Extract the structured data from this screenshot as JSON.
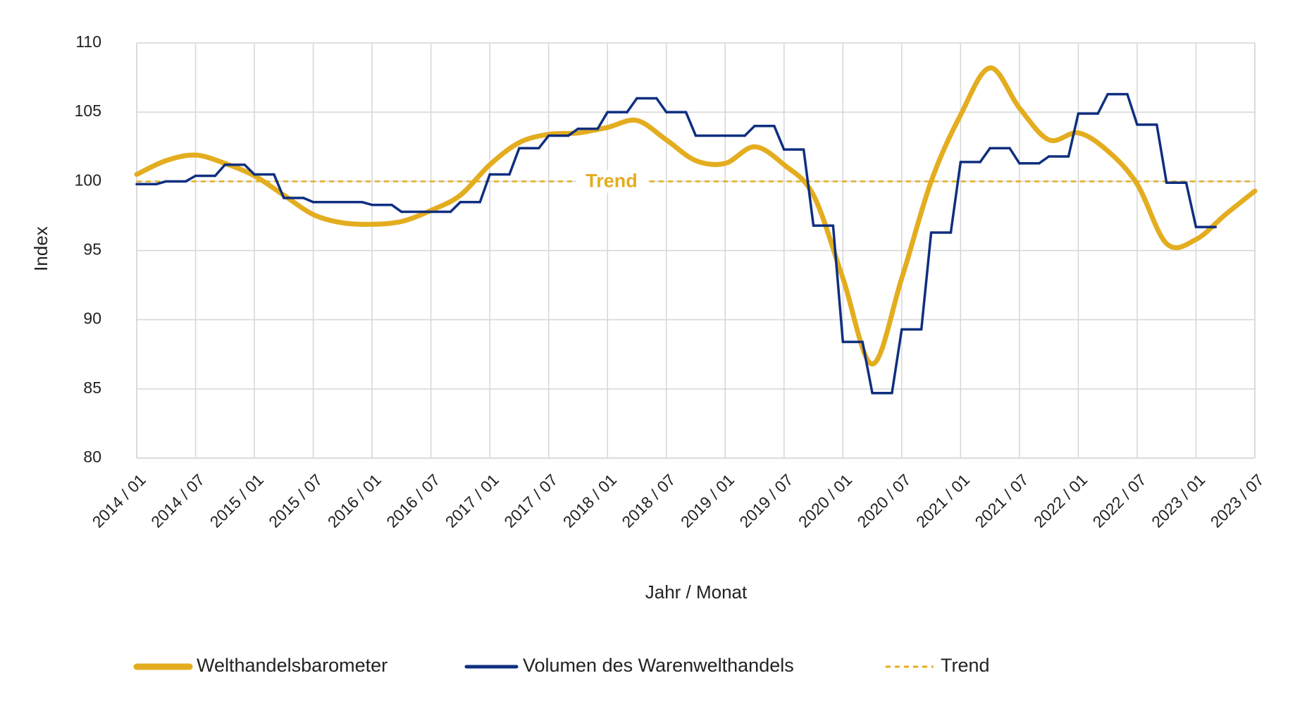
{
  "chart_data": {
    "type": "line",
    "y_label": "Index",
    "x_label": "Jahr / Monat",
    "categories": [
      "2014 / 01",
      null,
      "2014 / 07",
      null,
      "2015 / 01",
      null,
      "2015 / 07",
      null,
      "2016 / 01",
      null,
      "2016 / 07",
      null,
      "2017 / 01",
      null,
      "2017 / 07",
      null,
      "2018 / 01",
      null,
      "2018 / 07",
      null,
      "2019 / 01",
      null,
      "2019 / 07",
      null,
      "2020 / 01",
      null,
      "2020 / 07",
      null,
      "2021 / 01",
      null,
      "2021 / 07",
      null,
      "2022 / 01",
      null,
      "2022 / 07",
      null,
      "2023 / 01",
      null,
      "2023 / 07"
    ],
    "series": [
      {
        "name": "Welthandelsbarometer",
        "color": "#e3ad1f",
        "style": "smooth",
        "values": [
          100.5,
          101.5,
          101.9,
          101.3,
          100.4,
          99.0,
          97.6,
          97.0,
          96.9,
          97.1,
          97.9,
          99.0,
          101.2,
          102.8,
          103.4,
          103.5,
          103.9,
          104.4,
          103.0,
          101.5,
          101.3,
          102.5,
          101.2,
          99.0,
          93.0,
          86.8,
          93.0,
          100.0,
          104.8,
          108.2,
          105.3,
          103.0,
          103.5,
          102.2,
          99.8,
          95.5,
          95.8,
          97.6,
          99.3
        ]
      },
      {
        "name": "Volumen des Warenwelthandels",
        "color": "#0f2f7f",
        "style": "step",
        "values": [
          99.8,
          100.0,
          100.4,
          101.2,
          100.5,
          98.8,
          98.5,
          98.5,
          98.3,
          97.8,
          97.8,
          98.5,
          100.5,
          102.4,
          103.3,
          103.8,
          105.0,
          106.0,
          105.0,
          103.3,
          103.3,
          104.0,
          102.3,
          96.8,
          88.4,
          84.7,
          89.3,
          96.3,
          101.4,
          102.4,
          101.3,
          101.8,
          104.9,
          106.3,
          104.1,
          99.9,
          96.7,
          null,
          null
        ]
      }
    ],
    "trend": {
      "name": "Trend",
      "value": 100,
      "color": "#e3ad1f"
    },
    "ylim": [
      80,
      110
    ],
    "yticks": [
      80,
      85,
      90,
      95,
      100,
      105,
      110
    ],
    "grid": true
  }
}
